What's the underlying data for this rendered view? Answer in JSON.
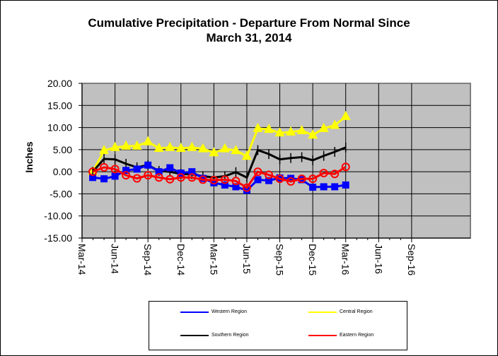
{
  "chart_data": {
    "type": "line",
    "title": "Cumulative Precipitation - Departure From Normal Since",
    "subtitle": "March 31, 2014",
    "xlabel": "",
    "ylabel": "Inches",
    "ylim": [
      -15,
      20
    ],
    "yticks": [
      "20.00",
      "15.00",
      "10.00",
      "5.00",
      "0.00",
      "-5.00",
      "-10.00",
      "-15.00"
    ],
    "ytick_values": [
      20,
      15,
      10,
      5,
      0,
      -5,
      -10,
      -15
    ],
    "xticks": [
      "Mar-14",
      "Jun-14",
      "Sep-14",
      "Dec-14",
      "Mar-15",
      "Jun-15",
      "Sep-15",
      "Dec-15",
      "Mar-16",
      "Jun-16",
      "Sep-16"
    ],
    "x_range_months": [
      0,
      30
    ],
    "x_months": [
      0.97,
      2,
      3,
      4,
      5,
      6,
      7,
      8,
      9,
      10,
      11,
      12,
      13,
      14,
      15,
      16,
      17,
      18,
      19,
      20,
      21,
      22,
      23,
      24
    ],
    "grid": true,
    "legend_position": "bottom",
    "series": [
      {
        "name": "Western Region",
        "color": "#0000FF",
        "marker": "square",
        "values": [
          -1.3,
          -1.6,
          -1.0,
          0.3,
          0.6,
          1.5,
          0.0,
          0.9,
          -0.3,
          0.0,
          -1.5,
          -2.5,
          -3.0,
          -3.4,
          -4.2,
          -1.8,
          -2.0,
          -1.4,
          -1.5,
          -1.8,
          -3.5,
          -3.4,
          -3.4,
          -3.0
        ]
      },
      {
        "name": "Central Region",
        "color": "#FFFF00",
        "marker": "triangle",
        "values": [
          0.0,
          4.8,
          5.5,
          5.8,
          5.8,
          6.8,
          5.3,
          5.5,
          5.3,
          5.5,
          5.2,
          4.3,
          5.2,
          4.8,
          3.5,
          9.8,
          9.6,
          8.8,
          9.0,
          9.3,
          8.3,
          9.8,
          10.5,
          12.5
        ]
      },
      {
        "name": "Southern Region",
        "color": "#000000",
        "marker": "plus",
        "values": [
          0.0,
          2.9,
          2.8,
          1.8,
          1.0,
          1.5,
          0.2,
          0.0,
          -0.5,
          -0.6,
          -1.0,
          -1.3,
          -1.0,
          -0.1,
          -1.3,
          4.9,
          4.0,
          2.8,
          3.1,
          3.3,
          2.6,
          3.6,
          4.5,
          5.5
        ]
      },
      {
        "name": "Eastern Region",
        "color": "#FF0000",
        "marker": "circle",
        "values": [
          0.0,
          1.0,
          0.6,
          -0.8,
          -1.5,
          -0.8,
          -1.3,
          -1.7,
          -1.3,
          -1.3,
          -1.8,
          -1.9,
          -1.8,
          -2.1,
          -3.6,
          0.0,
          -0.7,
          -1.6,
          -2.2,
          -1.6,
          -1.6,
          -0.3,
          -0.5,
          1.1
        ]
      }
    ],
    "draw_order": [
      1,
      2,
      0,
      3
    ],
    "plot_background": "#C0C0C0"
  }
}
